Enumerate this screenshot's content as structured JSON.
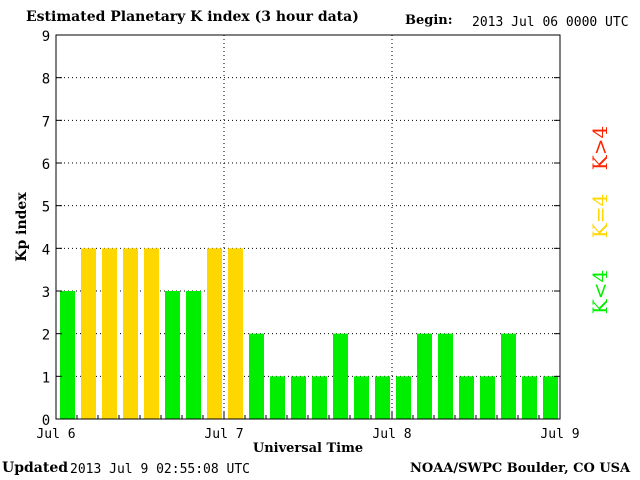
{
  "header": {
    "title": "Estimated Planetary K index (3 hour data)",
    "begin_label": "Begin:",
    "begin_value": "2013 Jul 06 0000 UTC"
  },
  "footer": {
    "updated_label": "Updated",
    "updated_value": "2013 Jul  9 02:55:08 UTC",
    "credit": "NOAA/SWPC Boulder, CO USA"
  },
  "legend": [
    {
      "label": "K<4",
      "color": "#00ee00"
    },
    {
      "label": "K=4",
      "color": "#ffd700"
    },
    {
      "label": "K>4",
      "color": "#ff2200"
    }
  ],
  "colors": {
    "low": "#00ee00",
    "equal": "#ffd700",
    "high": "#ff2200"
  },
  "chart_data": {
    "type": "bar",
    "xlabel": "Universal Time",
    "ylabel": "Kp index",
    "ylim": [
      0,
      9
    ],
    "yticks": [
      0,
      1,
      2,
      3,
      4,
      5,
      6,
      7,
      8,
      9
    ],
    "xticks": [
      "Jul 6",
      "Jul 7",
      "Jul 8",
      "Jul 9"
    ],
    "grid": true,
    "interval_hours": 3,
    "values": [
      3,
      4,
      4,
      4,
      4,
      3,
      3,
      4,
      4,
      2,
      1,
      1,
      1,
      2,
      1,
      1,
      1,
      2,
      2,
      1,
      1,
      2,
      1,
      1
    ]
  }
}
